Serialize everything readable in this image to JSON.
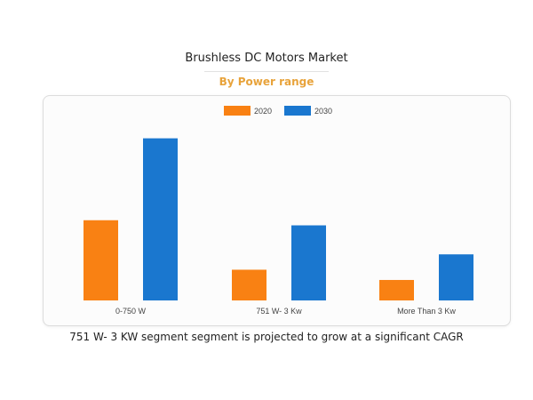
{
  "header": {
    "title": "Brushless DC Motors Market",
    "subtitle": "By Power range"
  },
  "caption": "751 W- 3 KW segment segment is projected to grow at a significant CAGR",
  "colors": {
    "s2020": "#f98113",
    "s2030": "#1a77cf"
  },
  "chart_data": {
    "type": "bar",
    "categories": [
      "0-750 W",
      "751 W- 3 Kw",
      "More Than 3 Kw"
    ],
    "series": [
      {
        "name": "2020",
        "values": [
          47,
          18,
          12
        ]
      },
      {
        "name": "2030",
        "values": [
          95,
          44,
          27
        ]
      }
    ],
    "ylim": [
      0,
      100
    ],
    "grid": false,
    "legend": "top-center"
  }
}
